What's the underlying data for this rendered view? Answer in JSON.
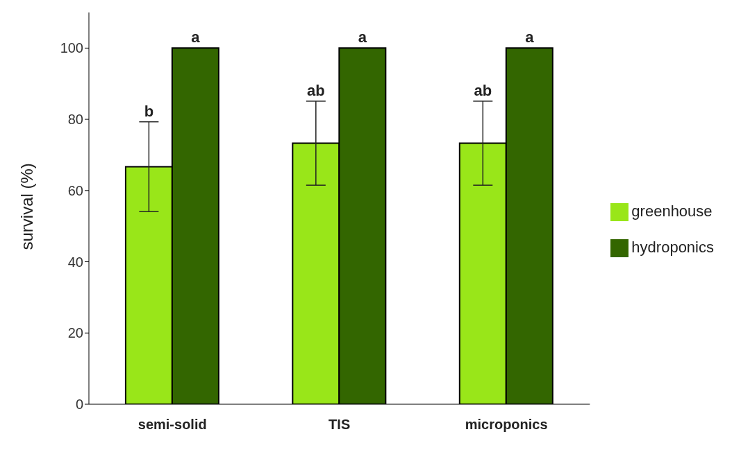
{
  "chart_data": {
    "type": "bar",
    "ylabel": "survival (%)",
    "categories": [
      "semi-solid",
      "TIS",
      "microponics"
    ],
    "series": [
      {
        "name": "greenhouse",
        "color": "#99e619",
        "values": [
          66.7,
          73.3,
          73.3
        ],
        "errors": [
          12.6,
          11.8,
          11.8
        ]
      },
      {
        "name": "hydroponics",
        "color": "#336600",
        "values": [
          100,
          100,
          100
        ]
      }
    ],
    "ylim": [
      0,
      110
    ],
    "yticks": [
      0,
      20,
      40,
      60,
      80,
      100
    ],
    "grid": false,
    "legend": "right",
    "annotations": [
      {
        "text": "b",
        "x": "semi-solid",
        "y": 79.3
      },
      {
        "text": "a",
        "x": "semi-solid",
        "y": 100
      },
      {
        "text": "ab",
        "x": "TIS",
        "y": 85.1
      },
      {
        "text": "a",
        "x": "TIS",
        "y": 100
      },
      {
        "text": "ab",
        "x": "microponics",
        "y": 85.1
      },
      {
        "text": "a",
        "x": "microponics",
        "y": 100
      }
    ]
  }
}
